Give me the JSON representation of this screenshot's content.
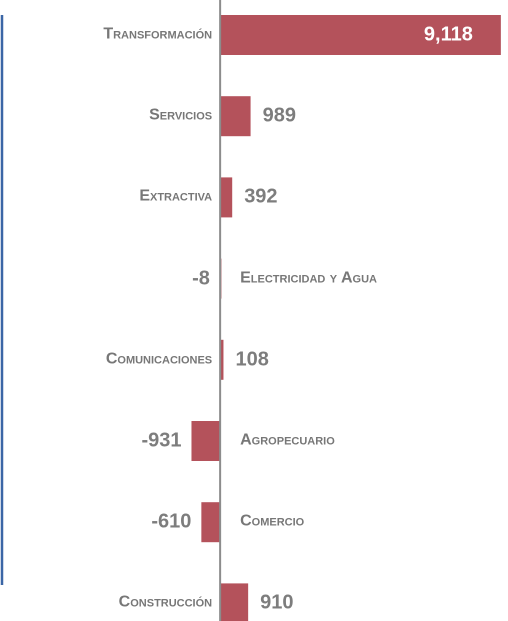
{
  "chart_data": {
    "type": "bar",
    "orientation": "horizontal",
    "categories": [
      "Transformación",
      "Servicios",
      "Extractiva",
      "Electricidad y Agua",
      "Comunicaciones",
      "Agropecuario",
      "Comercio",
      "Construcción"
    ],
    "values": [
      9118,
      989,
      392,
      -8,
      108,
      -931,
      -610,
      910
    ],
    "value_labels": [
      "9,118",
      "989",
      "392",
      "-8",
      "108",
      "-931",
      "-610",
      "910"
    ],
    "color": "#b4525b",
    "xlim": [
      -7150,
      9350
    ]
  }
}
